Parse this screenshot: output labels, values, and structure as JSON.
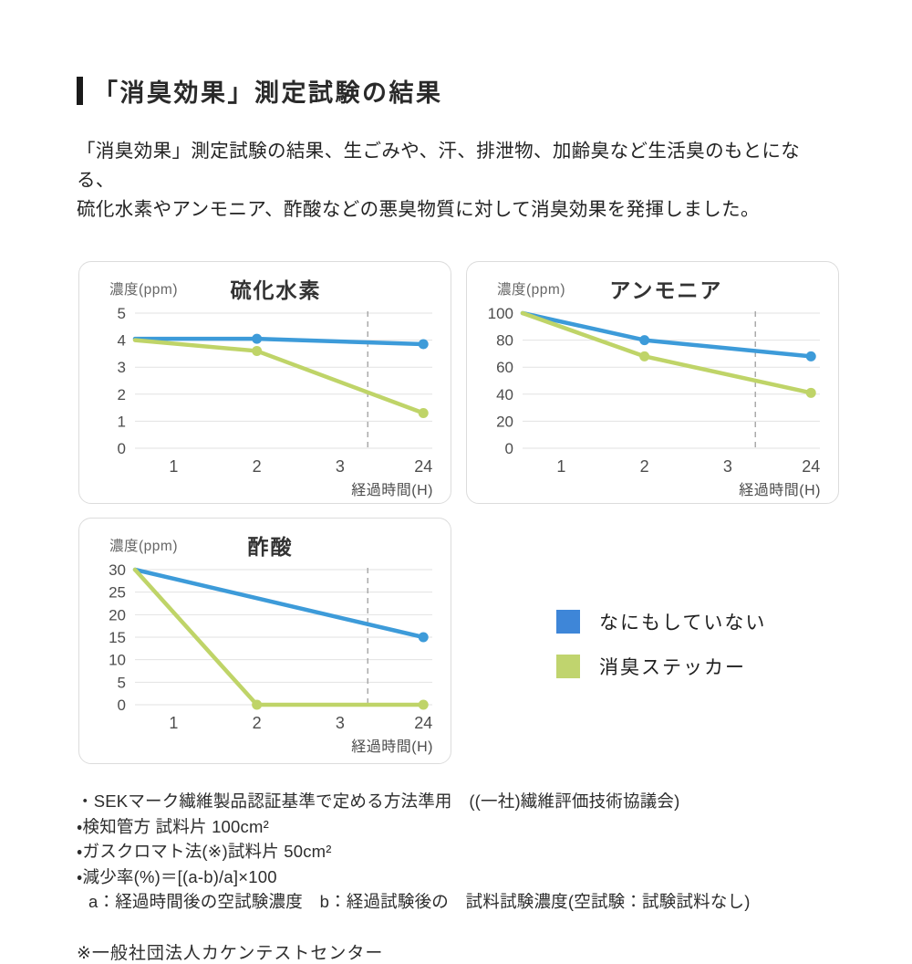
{
  "header": {
    "title": "「消臭効果」測定試験の結果"
  },
  "intro": {
    "line1": "「消臭効果」測定試験の結果、生ごみや、汗、排泄物、加齢臭など生活臭のもとになる、",
    "line2": "硫化水素やアンモニア、酢酸などの悪臭物質に対して消臭効果を発揮しました。"
  },
  "colors": {
    "blue_line": "#3d9bd9",
    "green_line": "#bfd468",
    "legend_blue": "#3e86d8",
    "legend_green": "#c0d46e",
    "grid": "#e2e2e2",
    "dash": "#ababab",
    "tick_text": "#4d4d4d"
  },
  "legend": {
    "items": [
      {
        "label": "なにもしていない",
        "color_key": "legend_blue"
      },
      {
        "label": "消臭ステッカー",
        "color_key": "legend_green"
      }
    ]
  },
  "chart_data": [
    {
      "type": "line",
      "title": "硫化水素",
      "y_unit_label": "濃度(ppm)",
      "x_axis_label": "経過時間(H)",
      "x_tick_hours": [
        1,
        2,
        3,
        24
      ],
      "x_tick_labels": [
        "1",
        "2",
        "3",
        "24"
      ],
      "ylim": [
        0,
        5
      ],
      "yticks": [
        0,
        1,
        2,
        3,
        4,
        5
      ],
      "dashed_vline": "between 3 and 24",
      "series": [
        {
          "name": "なにもしていない",
          "color": "blue_line",
          "points": [
            {
              "h": 0,
              "v": 4.05
            },
            {
              "h": 2,
              "v": 4.05
            },
            {
              "h": 24,
              "v": 3.85
            }
          ]
        },
        {
          "name": "消臭ステッカー",
          "color": "green_line",
          "points": [
            {
              "h": 0,
              "v": 4.0
            },
            {
              "h": 2,
              "v": 3.6
            },
            {
              "h": 24,
              "v": 1.3
            }
          ]
        }
      ]
    },
    {
      "type": "line",
      "title": "アンモニア",
      "y_unit_label": "濃度(ppm)",
      "x_axis_label": "経過時間(H)",
      "x_tick_hours": [
        1,
        2,
        3,
        24
      ],
      "x_tick_labels": [
        "1",
        "2",
        "3",
        "24"
      ],
      "ylim": [
        0,
        100
      ],
      "yticks": [
        0,
        20,
        40,
        60,
        80,
        100
      ],
      "dashed_vline": "between 3 and 24",
      "series": [
        {
          "name": "なにもしていない",
          "color": "blue_line",
          "points": [
            {
              "h": 0,
              "v": 100
            },
            {
              "h": 2,
              "v": 80
            },
            {
              "h": 24,
              "v": 68
            }
          ]
        },
        {
          "name": "消臭ステッカー",
          "color": "green_line",
          "points": [
            {
              "h": 0,
              "v": 100
            },
            {
              "h": 2,
              "v": 68
            },
            {
              "h": 24,
              "v": 41
            }
          ]
        }
      ]
    },
    {
      "type": "line",
      "title": "酢酸",
      "y_unit_label": "濃度(ppm)",
      "x_axis_label": "経過時間(H)",
      "x_tick_hours": [
        1,
        2,
        3,
        24
      ],
      "x_tick_labels": [
        "1",
        "2",
        "3",
        "24"
      ],
      "ylim": [
        0,
        30
      ],
      "yticks": [
        0,
        5,
        10,
        15,
        20,
        25,
        30
      ],
      "dashed_vline": "between 3 and 24",
      "series": [
        {
          "name": "なにもしていない",
          "color": "blue_line",
          "points": [
            {
              "h": 0,
              "v": 30
            },
            {
              "h": 24,
              "v": 15
            }
          ]
        },
        {
          "name": "消臭ステッカー",
          "color": "green_line",
          "points": [
            {
              "h": 0,
              "v": 30
            },
            {
              "h": 2,
              "v": 0
            },
            {
              "h": 24,
              "v": 0
            }
          ]
        }
      ]
    }
  ],
  "footnotes": {
    "lines": [
      "・SEKマーク繊維製品認証基準で定める方法準用　((一社)繊維評価技術協議会)",
      "・検知管方 試料片 100cm²",
      "・ガスクロマト法(※)試料片 50cm²",
      "・減少率(%)＝[(a-b)/a]×100",
      "a：経過時間後の空試験濃度　b：経過試験後の　試料試験濃度(空試験：試験試料なし)"
    ],
    "agency_note": "※一般社団法人カケンテストセンター"
  }
}
